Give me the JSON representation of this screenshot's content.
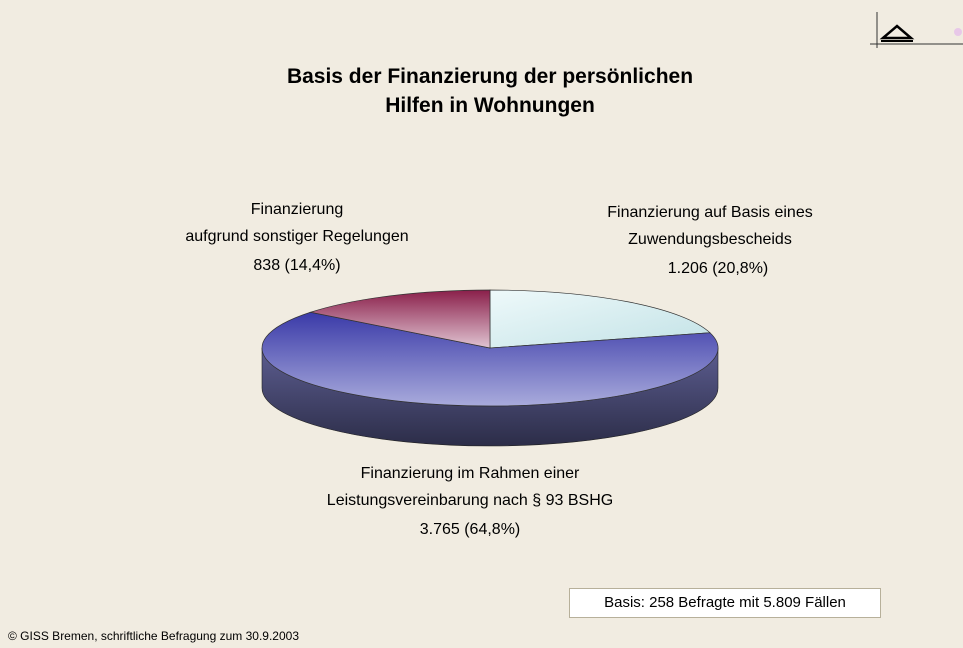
{
  "chart_data": {
    "type": "pie3d",
    "title": "Basis der Finanzierung der persönlichen\nHilfen in Wohnungen",
    "categories": [
      "Finanzierung auf Basis eines\nZuwendungsbescheids",
      "Finanzierung im Rahmen einer\nLeistungsvereinbarung nach § 93 BSHG",
      "Finanzierung\naufgrund sonstiger Regelungen"
    ],
    "values": [
      1206,
      3765,
      838
    ],
    "value_labels": [
      "1.206 (20,8%)",
      "3.765 (64,8%)",
      "838 (14,4%)"
    ],
    "colors": [
      "#d6eef0",
      "#8e90cf",
      "#c79aae"
    ],
    "note": "Basis: 258 Befragte mit 5.809 Fällen",
    "source": "© GISS Bremen, schriftliche Befragung zum 30.9.2003",
    "logo": "GISS"
  }
}
